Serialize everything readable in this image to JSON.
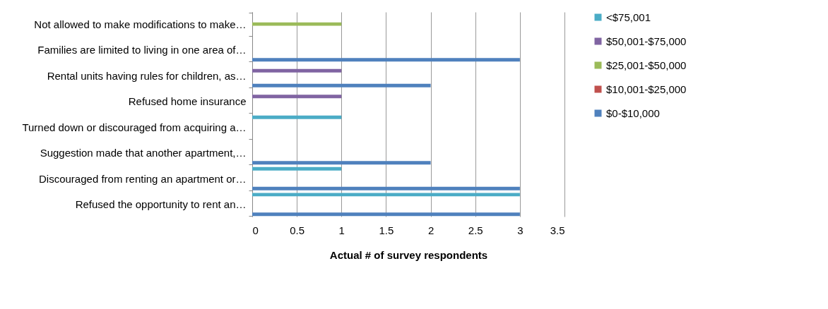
{
  "chart_data": {
    "type": "bar",
    "orientation": "horizontal",
    "xlabel": "Actual # of survey respondents",
    "categories": [
      "Not allowed to make modifications to make…",
      "Families are limited to living in one area of…",
      "Rental units having rules for children, as…",
      "Refused home insurance",
      "Turned down or discouraged from acquiring a…",
      "Suggestion made that another apartment,…",
      "Discouraged from renting an apartment or…",
      "Refused the opportunity to rent an…"
    ],
    "series": [
      {
        "name": "$0-$10,000",
        "color": "#4f81bd",
        "values": [
          null,
          3,
          2,
          null,
          null,
          2,
          3,
          3
        ]
      },
      {
        "name": "$10,001-$25,000",
        "color": "#c0504d",
        "values": [
          null,
          null,
          null,
          null,
          null,
          null,
          null,
          null
        ]
      },
      {
        "name": "$25,001-$50,000",
        "color": "#9bbb59",
        "values": [
          1,
          null,
          null,
          null,
          null,
          null,
          null,
          null
        ]
      },
      {
        "name": "$50,001-$75,000",
        "color": "#8064a2",
        "values": [
          null,
          null,
          1,
          1,
          null,
          null,
          null,
          null
        ]
      },
      {
        "name": "<$75,001",
        "color": "#4bacc6",
        "values": [
          null,
          null,
          null,
          null,
          1,
          null,
          1,
          3
        ]
      }
    ],
    "xlim": [
      0,
      3.5
    ],
    "xticks": [
      0,
      0.5,
      1,
      1.5,
      2,
      2.5,
      3,
      3.5
    ],
    "grid": "x",
    "legend": "right"
  }
}
